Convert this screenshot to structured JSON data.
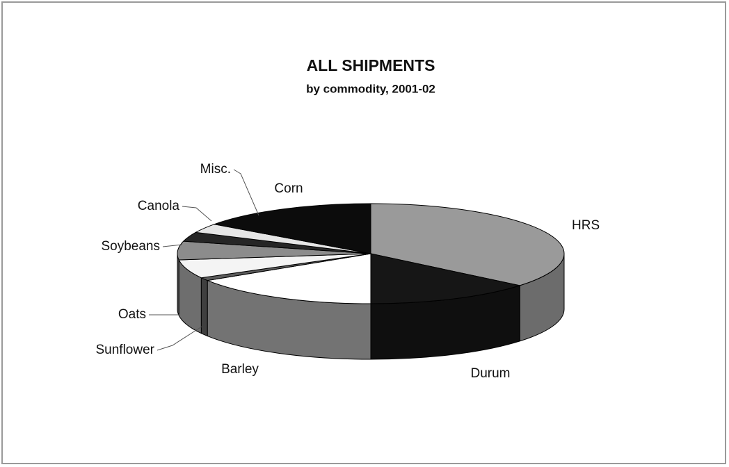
{
  "chart_data": {
    "type": "pie",
    "title": "ALL SHIPMENTS",
    "subtitle": "by commodity, 2001-02",
    "categories": [
      "HRS",
      "Durum",
      "Barley",
      "Sunflower",
      "Oats",
      "Soybeans",
      "Canola",
      "Misc.",
      "Corn"
    ],
    "values": [
      36,
      14,
      16,
      1,
      6,
      6,
      3,
      3,
      15
    ],
    "colors": [
      "#9a9a9a",
      "#161616",
      "#ffffff",
      "#5a5a5a",
      "#f4f4f4",
      "#8c8c8c",
      "#262626",
      "#e6e6e6",
      "#0c0c0c"
    ]
  }
}
